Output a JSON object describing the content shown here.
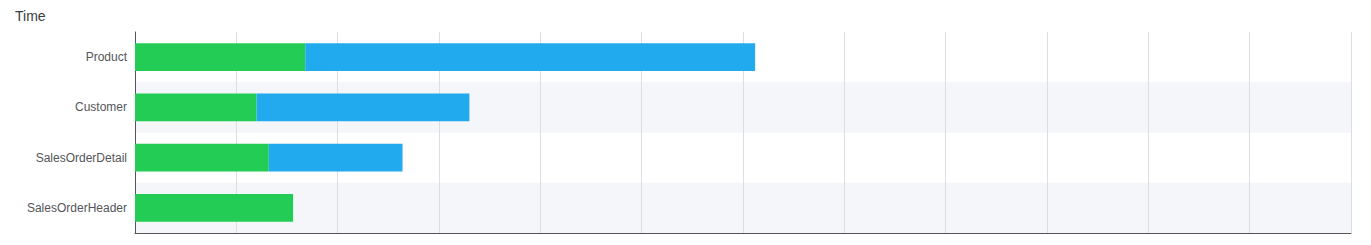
{
  "chart_data": {
    "type": "bar",
    "title": "Time",
    "orientation": "horizontal",
    "stacked": true,
    "categories": [
      "SalesOrderHeader",
      "SalesOrderDetail",
      "Customer",
      "Product"
    ],
    "series": [
      {
        "color": "#22cc55",
        "values": [
          13.0,
          11.0,
          10.0,
          14.0
        ]
      },
      {
        "color": "#22aaee",
        "values": [
          0.0,
          11.0,
          17.5,
          37.0
        ]
      }
    ],
    "xlim": [
      0,
      100
    ],
    "xticks": [
      8.333333333333334,
      16.666666666666668,
      25,
      33.333333333333336,
      41.666666666666664,
      50,
      58.333333333333336,
      66.66666666666667,
      75,
      83.33333333333333,
      91.66666666666667
    ],
    "grid": true,
    "tick_labels": "y"
  }
}
